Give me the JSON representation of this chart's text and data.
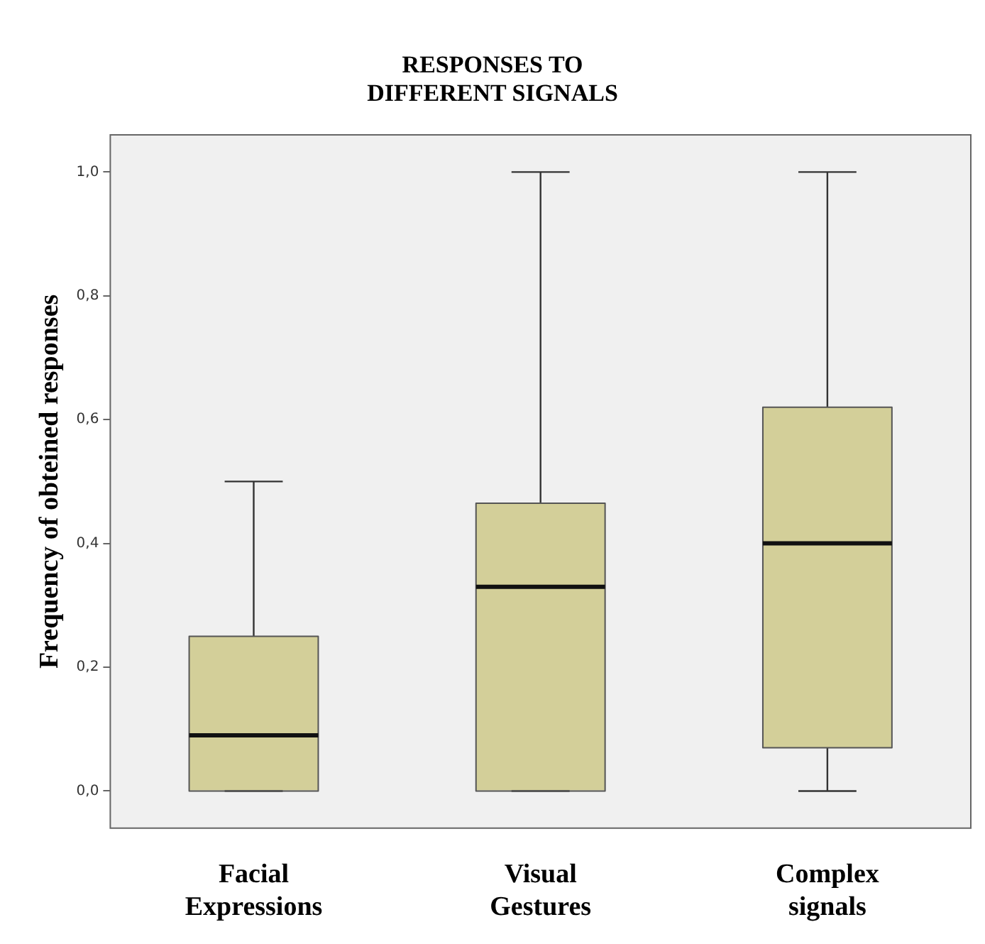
{
  "chart_data": {
    "type": "box",
    "title": "RESPONSES TO\nDIFFERENT SIGNALS",
    "ylabel": "Frequency of obteined responses",
    "categories": [
      "Facial\nExpressions",
      "Visual\nGestures",
      "Complex\nsignals"
    ],
    "color": "#d3cf99",
    "boxes": [
      {
        "low": 0,
        "q1": 0,
        "median": 0.09,
        "q3": 0.25,
        "high": 0.5
      },
      {
        "low": 0,
        "q1": 0,
        "median": 0.33,
        "q3": 0.465,
        "high": 1.0
      },
      {
        "low": 0,
        "q1": 0.07,
        "median": 0.4,
        "q3": 0.62,
        "high": 1.0
      }
    ],
    "ylim": [
      -0.06,
      1.06
    ],
    "yticks": [
      {
        "value": 0,
        "label": "0,0"
      },
      {
        "value": 0.2,
        "label": "0,2"
      },
      {
        "value": 0.4,
        "label": "0,4"
      },
      {
        "value": 0.6,
        "label": "0,6"
      },
      {
        "value": 0.8,
        "label": "0,8"
      },
      {
        "value": 1,
        "label": "1,0"
      }
    ],
    "grid": false,
    "legend": false
  }
}
